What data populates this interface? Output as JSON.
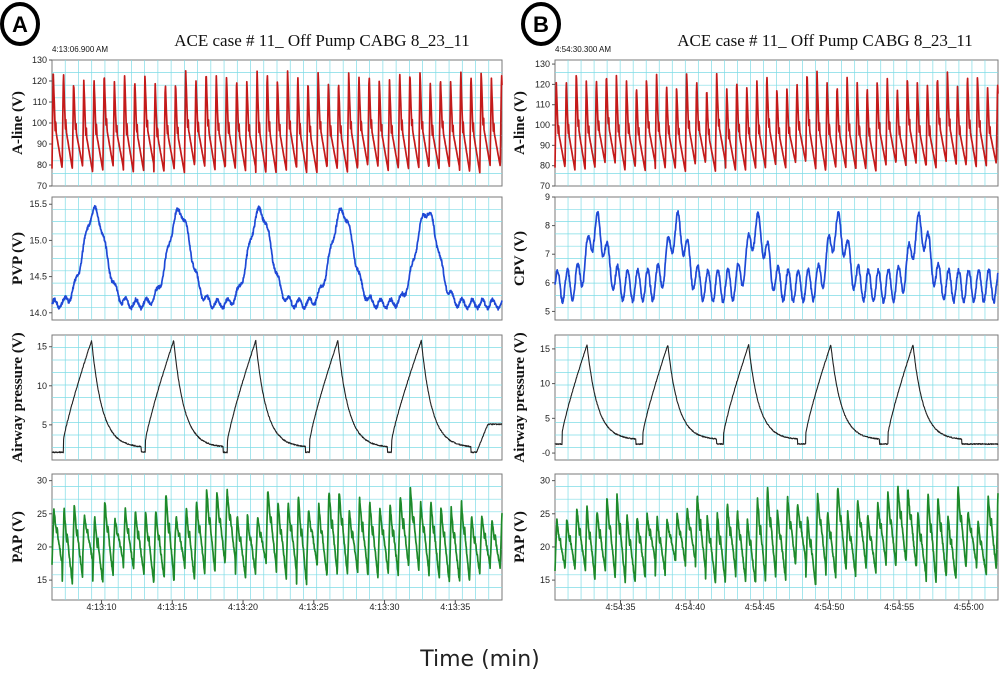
{
  "figure": {
    "x_axis_label": "Time (min)"
  },
  "chart_data": [
    {
      "panel_id": "A",
      "type": "line",
      "title": "ACE case # 11_ Off Pump CABG 8_23_11",
      "timestamp": "4:13:06.900  AM",
      "x_ticks": [
        "4:13:10",
        "4:13:15",
        "4:13:20",
        "4:13:25",
        "4:13:30",
        "4:13:35"
      ],
      "x_range_s": [
        0,
        31.8
      ],
      "x_tick_positions_s": [
        3.5,
        8.5,
        13.5,
        18.5,
        23.5,
        28.5
      ],
      "tracks": [
        {
          "name": "A-line",
          "ylabel": "A-line (V)",
          "color": "#c41a1a",
          "ylim": [
            70,
            130
          ],
          "yticks": [
            70,
            80,
            90,
            100,
            110,
            120,
            130
          ],
          "waveform": "arterial",
          "period_s": 0.72,
          "systolic_range": [
            119,
            126
          ],
          "diastolic_range": [
            76,
            80
          ]
        },
        {
          "name": "PVP",
          "ylabel": "PVP (V)",
          "color": "#1f49d6",
          "ylim": [
            13.9,
            15.6
          ],
          "yticks": [
            14.0,
            14.5,
            15.0,
            15.5
          ],
          "tick_decimals": 1,
          "waveform": "respiratory-venous",
          "peak_times_s": [
            3.0,
            9.0,
            14.7,
            20.5,
            26.5
          ],
          "baseline": 14.12,
          "peak": 15.4
        },
        {
          "name": "Airway pressure",
          "ylabel": "Airway pressure (V)",
          "color": "#222222",
          "ylim": [
            0.5,
            16.5
          ],
          "yticks": [
            5,
            10,
            15
          ],
          "waveform": "ventilator",
          "breath_starts_s": [
            0.8,
            6.6,
            12.4,
            18.2,
            24.0,
            30.0
          ],
          "peak_times_s": [
            2.8,
            8.6,
            14.4,
            20.2,
            26.1
          ],
          "baseline": 1.5,
          "peak": 15.8
        },
        {
          "name": "PAP",
          "ylabel": "PAP (V)",
          "color": "#1e8a2a",
          "ylim": [
            12,
            31
          ],
          "yticks": [
            15,
            20,
            25,
            30
          ],
          "waveform": "pulmonary",
          "period_s": 0.72,
          "systolic_range": [
            24,
            29
          ],
          "diastolic_range": [
            14,
            18
          ]
        }
      ]
    },
    {
      "panel_id": "B",
      "type": "line",
      "title": "ACE case # 11_ Off Pump CABG 8_23_11",
      "timestamp": "4:54:30.300  AM",
      "x_ticks": [
        "4:54:35",
        "4:54:40",
        "4:54:45",
        "4:54:50",
        "4:54:55",
        "4:55:00"
      ],
      "x_range_s": [
        0,
        31.8
      ],
      "x_tick_positions_s": [
        4.7,
        9.7,
        14.7,
        19.7,
        24.7,
        29.7
      ],
      "tracks": [
        {
          "name": "A-line",
          "ylabel": "A-line (V)",
          "color": "#c41a1a",
          "ylim": [
            70,
            132
          ],
          "yticks": [
            70,
            80,
            90,
            100,
            110,
            120,
            130
          ],
          "waveform": "arterial",
          "period_s": 0.72,
          "systolic_range": [
            118,
            127
          ],
          "diastolic_range": [
            77,
            82
          ]
        },
        {
          "name": "CPV",
          "ylabel": "CPV (V)",
          "color": "#1f49d6",
          "ylim": [
            4.7,
            9.0
          ],
          "yticks": [
            5,
            6,
            7,
            8,
            9
          ],
          "waveform": "respiratory-pulsatile",
          "peak_times_s": [
            3.0,
            8.8,
            14.5,
            20.3,
            26.2
          ],
          "baseline": 5.9,
          "peak": 8.5
        },
        {
          "name": "Airway pressure",
          "ylabel": "Airway pressure (V)",
          "color": "#222222",
          "ylim": [
            -1,
            17
          ],
          "yticks": [
            0,
            5,
            10,
            15
          ],
          "tick_labels": [
            "-0",
            "5",
            "10",
            "15"
          ],
          "waveform": "ventilator",
          "breath_starts_s": [
            0.5,
            6.3,
            12.1,
            18.0,
            23.9
          ],
          "peak_times_s": [
            2.3,
            8.1,
            13.9,
            19.8,
            25.7
          ],
          "baseline": 1.3,
          "peak": 15.6
        },
        {
          "name": "PAP",
          "ylabel": "PAP (V)",
          "color": "#1e8a2a",
          "ylim": [
            12,
            31
          ],
          "yticks": [
            15,
            20,
            25,
            30
          ],
          "waveform": "pulmonary",
          "period_s": 0.72,
          "systolic_range": [
            24,
            29.5
          ],
          "diastolic_range": [
            14,
            18
          ]
        }
      ]
    }
  ]
}
